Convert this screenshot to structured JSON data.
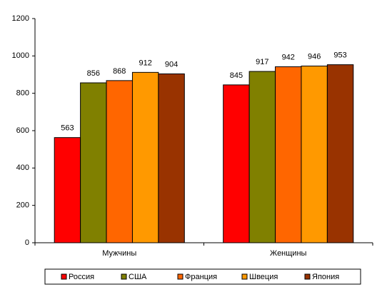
{
  "chart_data": {
    "type": "bar",
    "categories": [
      "Мужчины",
      "Женщины"
    ],
    "series": [
      {
        "name": "Россия",
        "color": "#ff0000",
        "values": [
          563,
          845
        ]
      },
      {
        "name": "США",
        "color": "#808000",
        "values": [
          856,
          917
        ]
      },
      {
        "name": "Франция",
        "color": "#ff6600",
        "values": [
          868,
          942
        ]
      },
      {
        "name": "Швеция",
        "color": "#ff9900",
        "values": [
          912,
          946
        ]
      },
      {
        "name": "Япония",
        "color": "#993300",
        "values": [
          904,
          953
        ]
      }
    ],
    "ylim": [
      0,
      1200
    ],
    "yticks": [
      0,
      200,
      400,
      600,
      800,
      1000,
      1200
    ],
    "grid": false,
    "legend": "bottom",
    "data_labels": true
  }
}
